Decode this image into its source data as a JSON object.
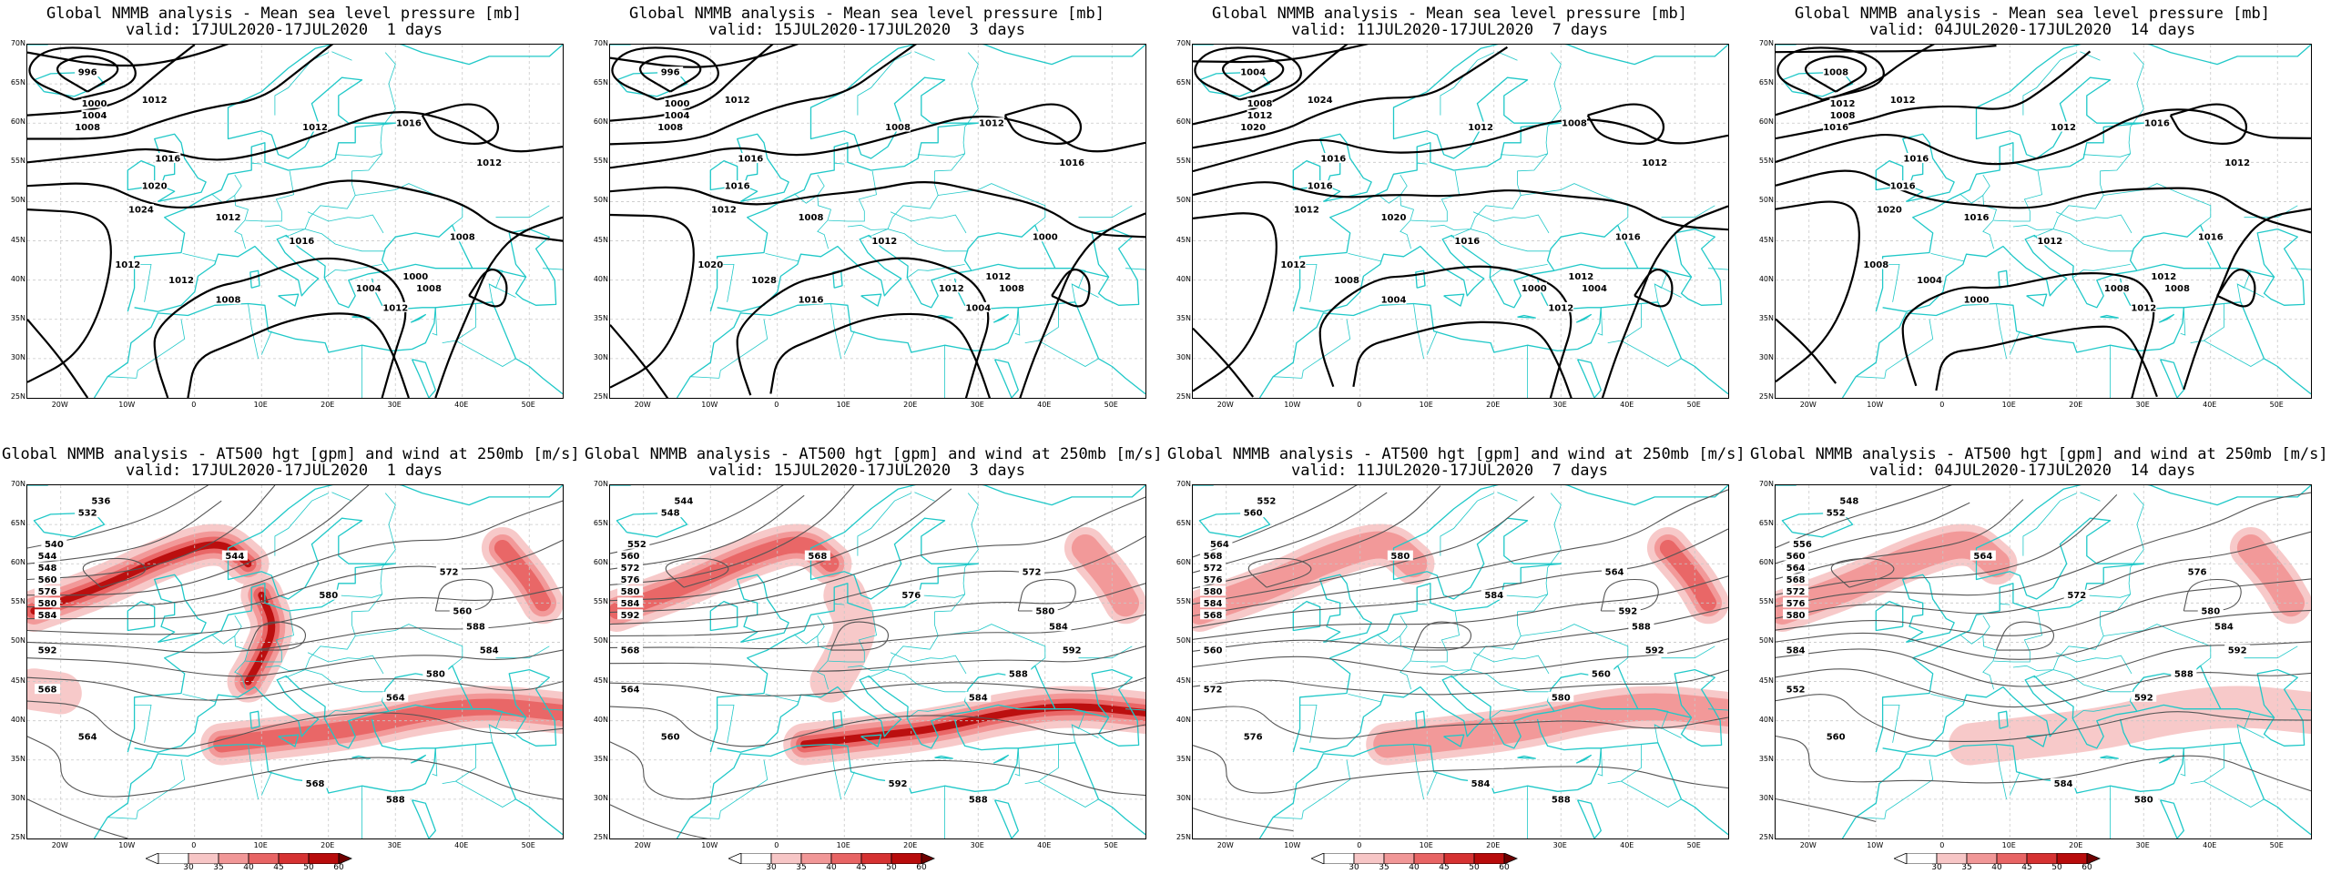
{
  "colors": {
    "coast": "#20c8c8",
    "isobar": "#000000",
    "height": "#555555",
    "grid": "#c8c8c8",
    "wind": [
      "#ffffff",
      "#f7c6c6",
      "#f19797",
      "#e86464",
      "#d63232",
      "#b80b0b",
      "#6e0000"
    ]
  },
  "axes": {
    "lat_labels": [
      "70N",
      "65N",
      "60N",
      "55N",
      "50N",
      "45N",
      "40N",
      "35N",
      "30N",
      "25N"
    ],
    "lon_labels": [
      "20W",
      "10W",
      "0",
      "10E",
      "20E",
      "30E",
      "40E",
      "50E"
    ]
  },
  "colorbar": {
    "ticks": [
      "30",
      "35",
      "40",
      "45",
      "50",
      "60"
    ]
  },
  "panels": [
    {
      "title": "Global NMMB analysis - Mean sea level pressure [mb]",
      "valid": "valid: 17JUL2020-17JUL2020  1 days",
      "kind": "mslp",
      "labels": [
        "996",
        "1000",
        "1004",
        "1008",
        "1012",
        "1016",
        "1020",
        "1024",
        "1012",
        "1016",
        "1012",
        "1012",
        "1008",
        "1004",
        "1000",
        "1008",
        "1012",
        "1008",
        "1012",
        "1016",
        "1012"
      ]
    },
    {
      "title": "Global NMMB analysis - Mean sea level pressure [mb]",
      "valid": "valid: 15JUL2020-17JUL2020  3 days",
      "kind": "mslp",
      "labels": [
        "996",
        "1000",
        "1004",
        "1008",
        "1012",
        "1016",
        "1016",
        "1012",
        "1008",
        "1012",
        "1020",
        "1028",
        "1016",
        "1012",
        "1012",
        "1008",
        "1004",
        "1000",
        "1008",
        "1012",
        "1016"
      ]
    },
    {
      "title": "Global NMMB analysis - Mean sea level pressure [mb]",
      "valid": "valid: 11JUL2020-17JUL2020  7 days",
      "kind": "mslp",
      "labels": [
        "1004",
        "1008",
        "1012",
        "1020",
        "1024",
        "1016",
        "1016",
        "1012",
        "1020",
        "1016",
        "1012",
        "1008",
        "1004",
        "1000",
        "1012",
        "1004",
        "1012",
        "1016",
        "1012",
        "1008",
        "1012"
      ]
    },
    {
      "title": "Global NMMB analysis - Mean sea level pressure [mb]",
      "valid": "valid: 04JUL2020-17JUL2020  14 days",
      "kind": "mslp",
      "labels": [
        "1008",
        "1012",
        "1008",
        "1016",
        "1012",
        "1016",
        "1016",
        "1020",
        "1016",
        "1012",
        "1008",
        "1004",
        "1000",
        "1008",
        "1012",
        "1008",
        "1012",
        "1016",
        "1012",
        "1016",
        "1012"
      ]
    },
    {
      "title": "Global NMMB analysis - AT500 hgt [gpm] and wind at 250mb [m/s]",
      "valid": "valid: 17JUL2020-17JUL2020  1 days",
      "kind": "z500",
      "labels": [
        "536",
        "532",
        "540",
        "544",
        "548",
        "560",
        "576",
        "580",
        "584",
        "592",
        "568",
        "564",
        "544",
        "580",
        "572",
        "560",
        "588",
        "584",
        "580",
        "564",
        "568",
        "588"
      ]
    },
    {
      "title": "Global NMMB analysis - AT500 hgt [gpm] and wind at 250mb [m/s]",
      "valid": "valid: 15JUL2020-17JUL2020  3 days",
      "kind": "z500",
      "labels": [
        "544",
        "548",
        "552",
        "560",
        "572",
        "576",
        "580",
        "584",
        "592",
        "568",
        "564",
        "560",
        "568",
        "576",
        "572",
        "580",
        "584",
        "592",
        "588",
        "584",
        "592",
        "588"
      ]
    },
    {
      "title": "Global NMMB analysis - AT500 hgt [gpm] and wind at 250mb [m/s]",
      "valid": "valid: 11JUL2020-17JUL2020  7 days",
      "kind": "z500",
      "labels": [
        "552",
        "560",
        "564",
        "568",
        "572",
        "576",
        "580",
        "584",
        "568",
        "560",
        "572",
        "576",
        "580",
        "584",
        "564",
        "592",
        "588",
        "592",
        "560",
        "580",
        "584",
        "588"
      ]
    },
    {
      "title": "Global NMMB analysis - AT500 hgt [gpm] and wind at 250mb [m/s]",
      "valid": "valid: 04JUL2020-17JUL2020  14 days",
      "kind": "z500",
      "labels": [
        "548",
        "552",
        "556",
        "560",
        "564",
        "568",
        "572",
        "576",
        "580",
        "584",
        "552",
        "560",
        "564",
        "572",
        "576",
        "580",
        "584",
        "592",
        "588",
        "592",
        "584",
        "580"
      ]
    }
  ]
}
